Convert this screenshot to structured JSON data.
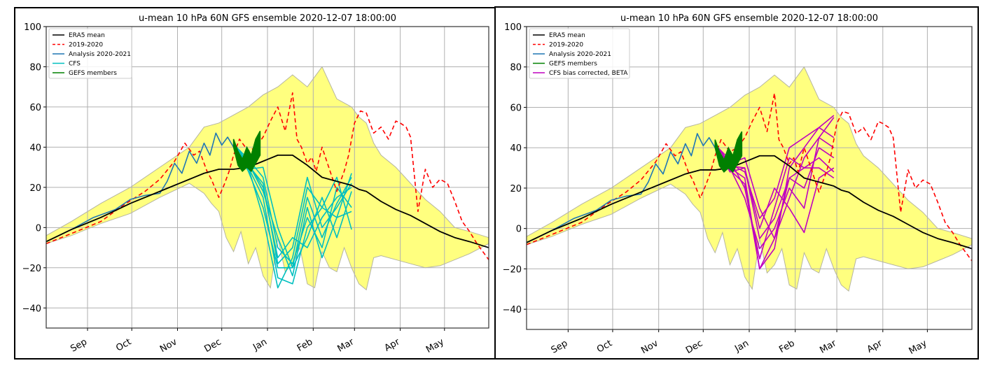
{
  "chart_data": [
    {
      "type": "line",
      "title": "u-mean 10 hPa 60N GFS ensemble 2020-12-07 18:00:00",
      "xlabel": "",
      "ylabel": "",
      "ylim": [
        -50,
        100
      ],
      "yticks": [
        -40,
        -20,
        0,
        20,
        40,
        60,
        80,
        100
      ],
      "xticks": [
        {
          "label": "Sep",
          "day": 31
        },
        {
          "label": "Oct",
          "day": 61
        },
        {
          "label": "Nov",
          "day": 92
        },
        {
          "label": "Dec",
          "day": 122
        },
        {
          "label": "Jan",
          "day": 153
        },
        {
          "label": "Feb",
          "day": 184
        },
        {
          "label": "Mar",
          "day": 212
        },
        {
          "label": "Apr",
          "day": 243
        },
        {
          "label": "May",
          "day": 273
        }
      ],
      "xlim_days": [
        3,
        303
      ],
      "grid": true,
      "legend_position": "top-left",
      "legend": [
        {
          "label": "ERA5 mean",
          "color": "#000000",
          "dash": false
        },
        {
          "label": "2019-2020",
          "color": "#ff0000",
          "dash": true
        },
        {
          "label": "Analysis 2020-2021",
          "color": "#1f77b4",
          "dash": false
        },
        {
          "label": "CFS",
          "color": "#00bfbf",
          "dash": false
        },
        {
          "label": "GEFS members",
          "color": "#008000",
          "dash": false
        }
      ],
      "ensemble_label": "CFS",
      "ensemble_color": "#00bfbf"
    },
    {
      "type": "line",
      "title": "u-mean 10 hPa 60N GFS ensemble 2020-12-07 18:00:00",
      "xlabel": "",
      "ylabel": "",
      "ylim": [
        -50,
        100
      ],
      "yticks": [
        -40,
        -20,
        0,
        20,
        40,
        60,
        80,
        100
      ],
      "xticks": [
        {
          "label": "Sep",
          "day": 31
        },
        {
          "label": "Oct",
          "day": 61
        },
        {
          "label": "Nov",
          "day": 92
        },
        {
          "label": "Dec",
          "day": 122
        },
        {
          "label": "Jan",
          "day": 153
        },
        {
          "label": "Feb",
          "day": 184
        },
        {
          "label": "Mar",
          "day": 212
        },
        {
          "label": "Apr",
          "day": 243
        },
        {
          "label": "May",
          "day": 273
        }
      ],
      "xlim_days": [
        3,
        303
      ],
      "grid": true,
      "legend_position": "top-left",
      "legend": [
        {
          "label": "ERA5 mean",
          "color": "#000000",
          "dash": false
        },
        {
          "label": "2019-2020",
          "color": "#ff0000",
          "dash": true
        },
        {
          "label": "Analysis 2020-2021",
          "color": "#1f77b4",
          "dash": false
        },
        {
          "label": "GEFS members",
          "color": "#008000",
          "dash": false
        },
        {
          "label": "CFS bias corrected, BETA",
          "color": "#bf00bf",
          "dash": false
        }
      ],
      "ensemble_label": "CFS bias corrected, BETA",
      "ensemble_color": "#bf00bf"
    }
  ],
  "series": {
    "era5_mean": {
      "days": [
        3,
        20,
        40,
        60,
        80,
        100,
        110,
        120,
        130,
        140,
        150,
        160,
        165,
        170,
        180,
        190,
        200,
        210,
        215,
        220,
        230,
        240,
        250,
        260,
        270,
        280,
        290,
        303
      ],
      "values": [
        -7,
        -1,
        5,
        12,
        18,
        24,
        27,
        29,
        29,
        30,
        33,
        36,
        36,
        36,
        31,
        25,
        23,
        21,
        19,
        18,
        13,
        9,
        6,
        2,
        -2,
        -5,
        -7,
        -10
      ]
    },
    "year_2019_2020": {
      "days": [
        3,
        20,
        40,
        55,
        70,
        80,
        90,
        97,
        103,
        107,
        112,
        115,
        120,
        124,
        127,
        130,
        134,
        140,
        145,
        150,
        155,
        160,
        165,
        170,
        173,
        176,
        180,
        183,
        186,
        190,
        195,
        200,
        205,
        208,
        212,
        216,
        220,
        225,
        230,
        235,
        240,
        243,
        247,
        250,
        255,
        260,
        265,
        270,
        275,
        280,
        285,
        290,
        295,
        303
      ],
      "values": [
        -8,
        -3,
        3,
        11,
        18,
        24,
        33,
        42,
        36,
        38,
        28,
        24,
        15,
        22,
        28,
        36,
        44,
        38,
        40,
        45,
        53,
        60,
        48,
        67,
        44,
        40,
        32,
        35,
        28,
        40,
        29,
        18,
        28,
        36,
        52,
        58,
        57,
        47,
        50,
        44,
        53,
        52,
        50,
        45,
        8,
        29,
        20,
        24,
        22,
        13,
        3,
        -2,
        -8,
        -16
      ]
    },
    "analysis_2020_2021": {
      "days": [
        3,
        20,
        35,
        50,
        60,
        70,
        80,
        85,
        90,
        95,
        100,
        105,
        110,
        114,
        118,
        122,
        126,
        130
      ],
      "values": [
        -7,
        -1,
        5,
        9,
        14,
        16,
        17,
        23,
        32,
        27,
        38,
        32,
        42,
        36,
        47,
        41,
        45,
        40
      ]
    },
    "envelope_upper": {
      "days": [
        3,
        20,
        40,
        60,
        80,
        100,
        110,
        120,
        130,
        140,
        150,
        160,
        170,
        180,
        185,
        190,
        200,
        210,
        215,
        220,
        225,
        230,
        240,
        250,
        260,
        270,
        280,
        290,
        303
      ],
      "values": [
        -4,
        3,
        12,
        20,
        30,
        40,
        50,
        52,
        56,
        60,
        66,
        70,
        76,
        70,
        75,
        80,
        64,
        60,
        55,
        52,
        42,
        36,
        30,
        22,
        14,
        8,
        0,
        -2,
        -5
      ]
    },
    "envelope_lower": {
      "days": [
        3,
        20,
        40,
        60,
        80,
        100,
        110,
        115,
        120,
        125,
        130,
        135,
        140,
        145,
        150,
        155,
        160,
        165,
        170,
        175,
        180,
        185,
        190,
        195,
        200,
        205,
        210,
        215,
        220,
        225,
        230,
        240,
        250,
        260,
        270,
        280,
        290,
        303
      ],
      "values": [
        -8,
        -4,
        2,
        7,
        15,
        22,
        17,
        12,
        8,
        -5,
        -12,
        -2,
        -18,
        -10,
        -24,
        -30,
        -5,
        -22,
        -18,
        -10,
        -28,
        -30,
        -12,
        -20,
        -22,
        -10,
        -20,
        -28,
        -31,
        -15,
        -14,
        -16,
        -18,
        -20,
        -19,
        -16,
        -13,
        -8
      ]
    },
    "gefs_members": {
      "days": [
        130,
        133,
        136,
        139,
        142,
        145,
        148
      ],
      "upper": [
        44,
        38,
        34,
        40,
        36,
        44,
        48
      ],
      "lower": [
        40,
        31,
        28,
        30,
        28,
        32,
        36
      ]
    },
    "ensemble_cfs": [
      {
        "days": [
          132,
          140,
          150,
          160,
          170,
          180,
          190,
          200,
          210
        ],
        "values": [
          40,
          32,
          20,
          -15,
          -5,
          -10,
          5,
          15,
          20
        ]
      },
      {
        "days": [
          132,
          140,
          150,
          160,
          170,
          180,
          190,
          200,
          210
        ],
        "values": [
          38,
          30,
          15,
          -25,
          -28,
          0,
          10,
          5,
          27
        ]
      },
      {
        "days": [
          132,
          140,
          150,
          160,
          170,
          180,
          190,
          200,
          210
        ],
        "values": [
          39,
          28,
          10,
          -20,
          -20,
          15,
          -5,
          12,
          25
        ]
      },
      {
        "days": [
          132,
          140,
          150,
          160,
          170,
          180,
          190,
          200,
          210
        ],
        "values": [
          40,
          34,
          25,
          -10,
          -18,
          5,
          -10,
          20,
          10
        ]
      },
      {
        "days": [
          132,
          140,
          150,
          160,
          170,
          180,
          190,
          200,
          210
        ],
        "values": [
          37,
          30,
          5,
          -30,
          -15,
          20,
          10,
          25,
          -1
        ]
      },
      {
        "days": [
          132,
          140,
          150,
          160,
          170,
          180,
          190,
          200,
          210
        ],
        "values": [
          38,
          32,
          18,
          -5,
          -24,
          10,
          -15,
          5,
          8
        ]
      },
      {
        "days": [
          132,
          140,
          150,
          160,
          170,
          180,
          190,
          200,
          210
        ],
        "values": [
          39,
          29,
          30,
          0,
          -20,
          -5,
          15,
          -5,
          18
        ]
      },
      {
        "days": [
          132,
          140,
          150,
          160,
          170,
          180,
          190,
          200,
          210
        ],
        "values": [
          40,
          31,
          22,
          -18,
          -10,
          25,
          0,
          10,
          22
        ]
      }
    ],
    "ensemble_cfs_bc": [
      {
        "days": [
          132,
          140,
          150,
          160,
          170,
          180,
          190,
          200,
          210
        ],
        "values": [
          40,
          32,
          35,
          10,
          -5,
          15,
          35,
          45,
          55
        ]
      },
      {
        "days": [
          132,
          140,
          150,
          160,
          170,
          180,
          190,
          200,
          210
        ],
        "values": [
          38,
          30,
          25,
          -20,
          -10,
          30,
          40,
          50,
          45
        ]
      },
      {
        "days": [
          132,
          140,
          150,
          160,
          170,
          180,
          190,
          200,
          210
        ],
        "values": [
          39,
          28,
          30,
          -5,
          5,
          25,
          20,
          40,
          35
        ]
      },
      {
        "days": [
          132,
          140,
          150,
          160,
          170,
          180,
          190,
          200,
          210
        ],
        "values": [
          40,
          34,
          20,
          -15,
          10,
          35,
          30,
          30,
          25
        ]
      },
      {
        "days": [
          132,
          140,
          150,
          160,
          170,
          180,
          190,
          200,
          210
        ],
        "values": [
          37,
          30,
          15,
          -10,
          0,
          20,
          10,
          45,
          40
        ]
      },
      {
        "days": [
          132,
          140,
          150,
          160,
          170,
          180,
          190,
          200,
          210
        ],
        "values": [
          38,
          32,
          28,
          5,
          15,
          40,
          45,
          50,
          56
        ]
      },
      {
        "days": [
          132,
          140,
          150,
          160,
          170,
          180,
          190,
          200,
          210
        ],
        "values": [
          39,
          29,
          22,
          -20,
          -5,
          25,
          30,
          35,
          28
        ]
      },
      {
        "days": [
          132,
          140,
          150,
          160,
          170,
          180,
          190,
          200,
          210
        ],
        "values": [
          40,
          31,
          30,
          0,
          20,
          10,
          -2,
          25,
          30
        ]
      }
    ]
  }
}
